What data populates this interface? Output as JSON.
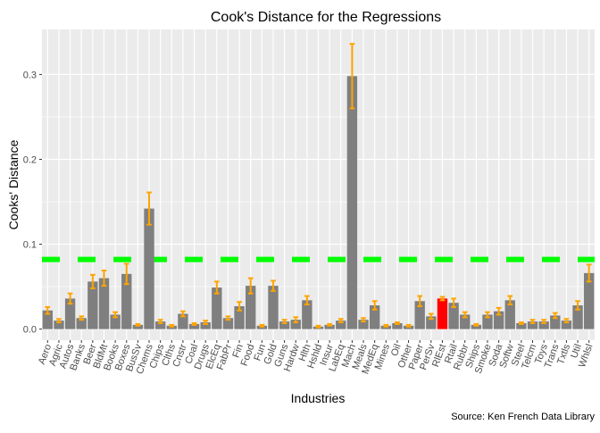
{
  "chart_data": {
    "type": "bar",
    "title": "Cook's Distance for the Regressions",
    "xlabel": "Industries",
    "ylabel": "Cooks' Distance",
    "caption": "Source: Ken French Data Library",
    "ylim": [
      -0.013,
      0.353
    ],
    "yticks": [
      0.0,
      0.1,
      0.2,
      0.3
    ],
    "ytick_labels": [
      "0.0",
      "0.1",
      "0.2",
      "0.3"
    ],
    "grid": true,
    "threshold": 0.082,
    "highlight_category": "RlEst",
    "colors": {
      "bar": "#7f7f7f",
      "highlight": "#ff0000",
      "error": "#ffa500",
      "threshold": "#00ff00",
      "panel": "#ebebeb",
      "grid": "#ffffff"
    },
    "categories": [
      "Aero",
      "Agric",
      "Autos",
      "Banks",
      "Beer",
      "BldMt",
      "Books",
      "Boxes",
      "BusSv",
      "Chems",
      "Chips",
      "Clths",
      "Cnstr",
      "Coal",
      "Drugs",
      "ElcEq",
      "FabPr",
      "Fin",
      "Food",
      "Fun",
      "Gold",
      "Guns",
      "Hardw",
      "Hlth",
      "Hshld",
      "Insur",
      "LabEq",
      "Mach",
      "Meals",
      "MedEq",
      "Mines",
      "Oil",
      "Other",
      "Paper",
      "PerSv",
      "RlEst",
      "Rtail",
      "Rubbr",
      "Ships",
      "Smoke",
      "Soda",
      "Softw",
      "Steel",
      "Telcm",
      "Toys",
      "Trans",
      "Txtls",
      "Util",
      "Whlsl"
    ],
    "values": [
      0.022,
      0.01,
      0.036,
      0.013,
      0.056,
      0.06,
      0.017,
      0.065,
      0.005,
      0.142,
      0.009,
      0.004,
      0.018,
      0.006,
      0.008,
      0.049,
      0.013,
      0.027,
      0.051,
      0.004,
      0.051,
      0.009,
      0.011,
      0.034,
      0.003,
      0.005,
      0.01,
      0.298,
      0.011,
      0.028,
      0.004,
      0.007,
      0.004,
      0.033,
      0.015,
      0.036,
      0.031,
      0.017,
      0.005,
      0.017,
      0.021,
      0.034,
      0.007,
      0.009,
      0.009,
      0.016,
      0.01,
      0.028,
      0.066
    ],
    "errors": [
      0.004,
      0.002,
      0.006,
      0.002,
      0.008,
      0.009,
      0.003,
      0.012,
      0.001,
      0.019,
      0.002,
      0.001,
      0.003,
      0.001,
      0.002,
      0.007,
      0.002,
      0.005,
      0.009,
      0.001,
      0.006,
      0.002,
      0.003,
      0.005,
      0.001,
      0.001,
      0.002,
      0.038,
      0.002,
      0.005,
      0.001,
      0.001,
      0.001,
      0.006,
      0.003,
      0.002,
      0.005,
      0.003,
      0.001,
      0.003,
      0.004,
      0.005,
      0.001,
      0.002,
      0.002,
      0.003,
      0.002,
      0.005,
      0.01
    ]
  }
}
